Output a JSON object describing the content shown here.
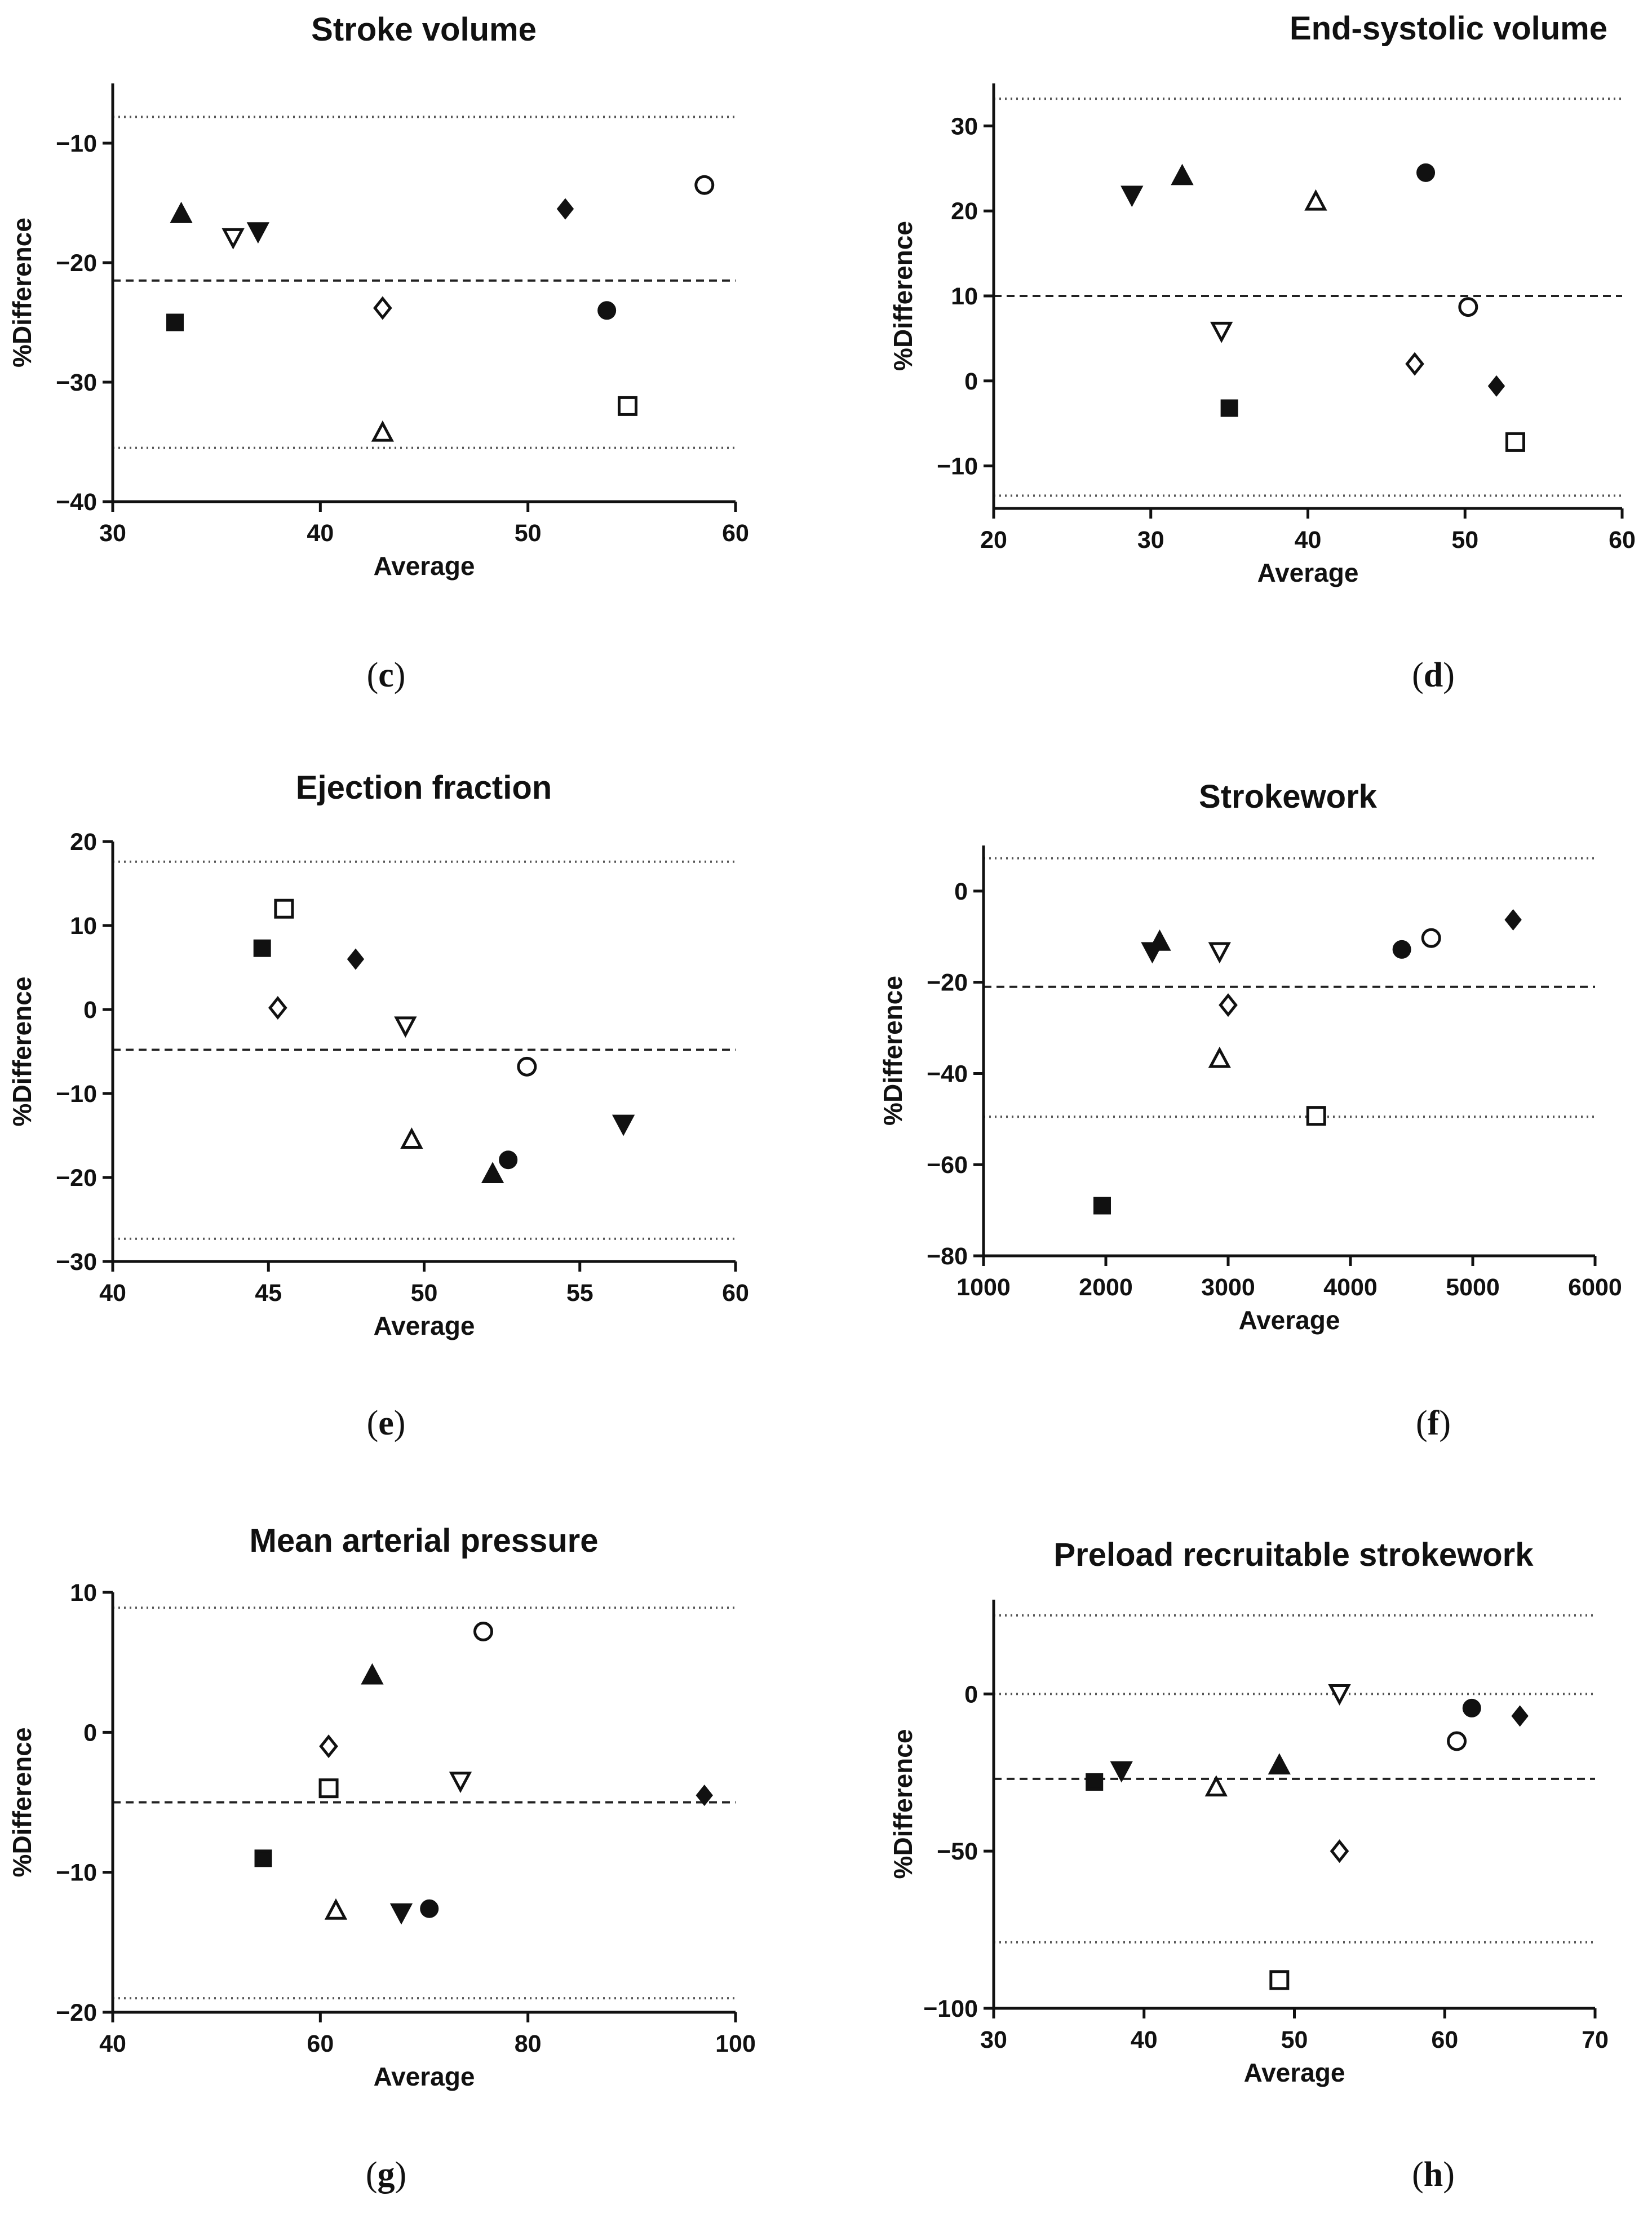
{
  "chart_data": [
    {
      "panel": "(c)",
      "type": "scatter",
      "title": "Stroke volume",
      "xlabel": "Average",
      "ylabel": "%Difference",
      "xlim": [
        30,
        60
      ],
      "ylim": [
        -40,
        -5
      ],
      "xticks": [
        30,
        40,
        50,
        60
      ],
      "yticks": [
        -40,
        -30,
        -20,
        -10
      ],
      "xtick_labels": [
        "30",
        "40",
        "50",
        "60"
      ],
      "ytick_labels": [
        "−40",
        "−30",
        "−20",
        "−10"
      ],
      "mean": -21.5,
      "loa": [
        -35.5,
        -7.8
      ],
      "points": [
        {
          "x": 33.0,
          "y": -25.0,
          "marker": "square-filled"
        },
        {
          "x": 33.3,
          "y": -16.0,
          "marker": "triangle-up-filled"
        },
        {
          "x": 35.8,
          "y": -17.8,
          "marker": "triangle-down-open"
        },
        {
          "x": 37.0,
          "y": -17.3,
          "marker": "triangle-down-filled"
        },
        {
          "x": 43.0,
          "y": -23.8,
          "marker": "diamond-open"
        },
        {
          "x": 43.0,
          "y": -34.3,
          "marker": "triangle-up-open"
        },
        {
          "x": 51.8,
          "y": -15.5,
          "marker": "diamond-filled"
        },
        {
          "x": 53.8,
          "y": -24.0,
          "marker": "circle-filled"
        },
        {
          "x": 54.8,
          "y": -32.0,
          "marker": "square-open"
        },
        {
          "x": 58.5,
          "y": -13.5,
          "marker": "circle-open"
        }
      ]
    },
    {
      "panel": "(d)",
      "type": "scatter",
      "title": "End-systolic volume",
      "xlabel": "Average",
      "ylabel": "%Difference",
      "xlim": [
        20,
        60
      ],
      "ylim": [
        -15,
        35
      ],
      "xticks": [
        20,
        30,
        40,
        50,
        60
      ],
      "yticks": [
        -10,
        0,
        10,
        20,
        30
      ],
      "xtick_labels": [
        "20",
        "30",
        "40",
        "50",
        "60"
      ],
      "ytick_labels": [
        "−10",
        "0",
        "10",
        "20",
        "30"
      ],
      "mean": 10.0,
      "loa": [
        -13.5,
        33.2
      ],
      "points": [
        {
          "x": 28.8,
          "y": 22.0,
          "marker": "triangle-down-filled"
        },
        {
          "x": 32.0,
          "y": 24.0,
          "marker": "triangle-up-filled"
        },
        {
          "x": 34.5,
          "y": 6.0,
          "marker": "triangle-down-open"
        },
        {
          "x": 35.0,
          "y": -3.2,
          "marker": "square-filled"
        },
        {
          "x": 40.5,
          "y": 21.0,
          "marker": "triangle-up-open"
        },
        {
          "x": 46.8,
          "y": 2.0,
          "marker": "diamond-open"
        },
        {
          "x": 47.5,
          "y": 24.5,
          "marker": "circle-filled"
        },
        {
          "x": 50.2,
          "y": 8.7,
          "marker": "circle-open"
        },
        {
          "x": 52.0,
          "y": -0.6,
          "marker": "diamond-filled"
        },
        {
          "x": 53.2,
          "y": -7.2,
          "marker": "square-open"
        }
      ]
    },
    {
      "panel": "(e)",
      "type": "scatter",
      "title": "Ejection fraction",
      "xlabel": "Average",
      "ylabel": "%Difference",
      "xlim": [
        40,
        60
      ],
      "ylim": [
        -30,
        20
      ],
      "xticks": [
        40,
        45,
        50,
        55,
        60
      ],
      "yticks": [
        -30,
        -20,
        -10,
        0,
        10,
        20
      ],
      "xtick_labels": [
        "40",
        "45",
        "50",
        "55",
        "60"
      ],
      "ytick_labels": [
        "−30",
        "−20",
        "−10",
        "0",
        "10",
        "20"
      ],
      "mean": -4.8,
      "loa": [
        -27.3,
        17.6
      ],
      "points": [
        {
          "x": 44.8,
          "y": 7.3,
          "marker": "square-filled"
        },
        {
          "x": 45.5,
          "y": 12.0,
          "marker": "square-open"
        },
        {
          "x": 45.3,
          "y": 0.2,
          "marker": "diamond-open"
        },
        {
          "x": 47.8,
          "y": 6.0,
          "marker": "diamond-filled"
        },
        {
          "x": 49.4,
          "y": -1.8,
          "marker": "triangle-down-open"
        },
        {
          "x": 49.6,
          "y": -15.6,
          "marker": "triangle-up-open"
        },
        {
          "x": 52.2,
          "y": -19.7,
          "marker": "triangle-up-filled"
        },
        {
          "x": 52.7,
          "y": -17.9,
          "marker": "circle-filled"
        },
        {
          "x": 53.3,
          "y": -6.8,
          "marker": "circle-open"
        },
        {
          "x": 56.4,
          "y": -13.5,
          "marker": "triangle-down-filled"
        }
      ]
    },
    {
      "panel": "(f)",
      "type": "scatter",
      "title": "Strokework",
      "xlabel": "Average",
      "ylabel": "%Difference",
      "xlim": [
        1000,
        6000
      ],
      "ylim": [
        -80,
        10
      ],
      "xticks": [
        1000,
        2000,
        3000,
        4000,
        5000,
        6000
      ],
      "yticks": [
        -80,
        -60,
        -40,
        -20,
        0
      ],
      "xtick_labels": [
        "1000",
        "2000",
        "3000",
        "4000",
        "5000",
        "6000"
      ],
      "ytick_labels": [
        "−80",
        "−60",
        "−40",
        "−20",
        "0"
      ],
      "mean": -21.0,
      "loa": [
        -49.5,
        7.2
      ],
      "points": [
        {
          "x": 1970,
          "y": -69.0,
          "marker": "square-filled"
        },
        {
          "x": 2380,
          "y": -13.0,
          "marker": "triangle-down-filled"
        },
        {
          "x": 2440,
          "y": -11.3,
          "marker": "triangle-up-filled"
        },
        {
          "x": 2930,
          "y": -13.0,
          "marker": "triangle-down-open"
        },
        {
          "x": 2930,
          "y": -37.0,
          "marker": "triangle-up-open"
        },
        {
          "x": 3000,
          "y": -25.0,
          "marker": "diamond-open"
        },
        {
          "x": 3720,
          "y": -49.3,
          "marker": "square-open"
        },
        {
          "x": 4420,
          "y": -12.8,
          "marker": "circle-filled"
        },
        {
          "x": 4660,
          "y": -10.3,
          "marker": "circle-open"
        },
        {
          "x": 5330,
          "y": -6.3,
          "marker": "diamond-filled"
        }
      ]
    },
    {
      "panel": "(g)",
      "type": "scatter",
      "title": "Mean arterial pressure",
      "xlabel": "Average",
      "ylabel": "%Difference",
      "xlim": [
        40,
        100
      ],
      "ylim": [
        -20,
        10
      ],
      "xticks": [
        40,
        60,
        80,
        100
      ],
      "yticks": [
        -20,
        -10,
        0,
        10
      ],
      "xtick_labels": [
        "40",
        "60",
        "80",
        "100"
      ],
      "ytick_labels": [
        "−20",
        "−10",
        "0",
        "10"
      ],
      "mean": -5.0,
      "loa": [
        -19.0,
        8.9
      ],
      "points": [
        {
          "x": 54.5,
          "y": -9.0,
          "marker": "square-filled"
        },
        {
          "x": 60.8,
          "y": -1.0,
          "marker": "diamond-open"
        },
        {
          "x": 60.8,
          "y": -4.0,
          "marker": "square-open"
        },
        {
          "x": 61.5,
          "y": -12.8,
          "marker": "triangle-up-open"
        },
        {
          "x": 65.0,
          "y": 4.0,
          "marker": "triangle-up-filled"
        },
        {
          "x": 67.8,
          "y": -12.8,
          "marker": "triangle-down-filled"
        },
        {
          "x": 70.5,
          "y": -12.6,
          "marker": "circle-filled"
        },
        {
          "x": 73.5,
          "y": -3.4,
          "marker": "triangle-down-open"
        },
        {
          "x": 75.7,
          "y": 7.2,
          "marker": "circle-open"
        },
        {
          "x": 97.0,
          "y": -4.5,
          "marker": "diamond-filled"
        }
      ]
    },
    {
      "panel": "(h)",
      "type": "scatter",
      "title": "Preload recruitable strokework",
      "xlabel": "Average",
      "ylabel": "%Difference",
      "xlim": [
        30,
        70
      ],
      "ylim": [
        -100,
        30
      ],
      "xticks": [
        30,
        40,
        50,
        60,
        70
      ],
      "yticks": [
        -100,
        -50,
        0
      ],
      "xtick_labels": [
        "30",
        "40",
        "50",
        "60",
        "70"
      ],
      "ytick_labels": [
        "−100",
        "−50",
        "0"
      ],
      "mean": -27.0,
      "loa": [
        -79.0,
        25.0
      ],
      "extra_lines": [
        0
      ],
      "points": [
        {
          "x": 36.7,
          "y": -28.0,
          "marker": "square-filled"
        },
        {
          "x": 38.5,
          "y": -24.0,
          "marker": "triangle-down-filled"
        },
        {
          "x": 44.8,
          "y": -30.0,
          "marker": "triangle-up-open"
        },
        {
          "x": 49.0,
          "y": -91.0,
          "marker": "square-open"
        },
        {
          "x": 49.0,
          "y": -23.0,
          "marker": "triangle-up-filled"
        },
        {
          "x": 53.0,
          "y": 0.5,
          "marker": "triangle-down-open"
        },
        {
          "x": 53.0,
          "y": -50.0,
          "marker": "diamond-open"
        },
        {
          "x": 60.8,
          "y": -15.0,
          "marker": "circle-open"
        },
        {
          "x": 61.8,
          "y": -4.5,
          "marker": "circle-filled"
        },
        {
          "x": 65.0,
          "y": -7.0,
          "marker": "diamond-filled"
        }
      ]
    }
  ]
}
